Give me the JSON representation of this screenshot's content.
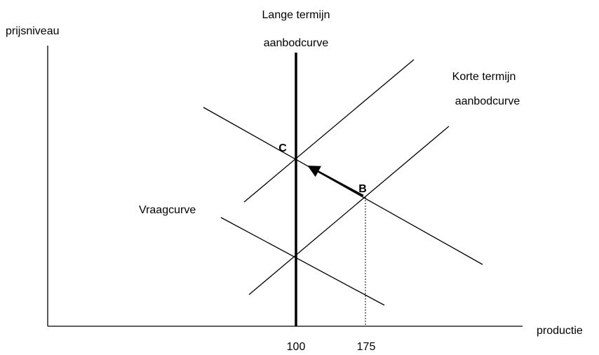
{
  "axes": {
    "y_label": "prijsniveau",
    "x_label": "productie"
  },
  "labels": {
    "lras": [
      "Lange termijn",
      "aanbodcurve"
    ],
    "sras": [
      "Korte termijn",
      "aanbodcurve"
    ],
    "demand": "Vraagcurve"
  },
  "points": {
    "c": "C",
    "b": "B"
  },
  "x_ticks": [
    "100",
    "175"
  ]
}
